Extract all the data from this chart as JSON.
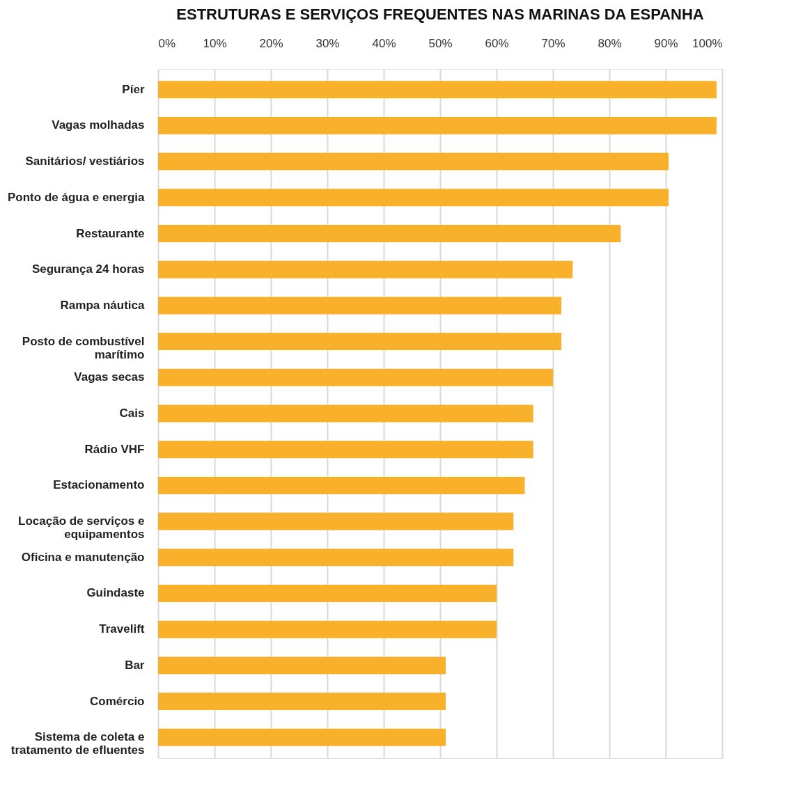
{
  "chart_data": {
    "type": "bar",
    "orientation": "horizontal",
    "title": "ESTRUTURAS E SERVIÇOS FREQUENTES NAS MARINAS DA ESPANHA",
    "categories": [
      "Píer",
      "Vagas molhadas",
      "Sanitários/ vestiários",
      "Ponto de água e energia",
      "Restaurante",
      "Segurança 24 horas",
      "Rampa náutica",
      "Posto de combustível\nmarítimo",
      "Vagas secas",
      "Cais",
      "Rádio VHF",
      "Estacionamento",
      "Locação de serviços e\nequipamentos",
      "Oficina e manutenção",
      "Guindaste",
      "Travelift",
      "Bar",
      "Comércio",
      "Sistema de coleta e\ntratamento de efluentes"
    ],
    "values": [
      99,
      99,
      90.5,
      90.5,
      82,
      73.5,
      71.5,
      71.5,
      70,
      66.5,
      66.5,
      65,
      63,
      63,
      60,
      60,
      51,
      51,
      51
    ],
    "color": "#f9b02a",
    "xlim": [
      0,
      100
    ],
    "xticks": [
      {
        "value": 0,
        "label": "0%"
      },
      {
        "value": 10,
        "label": "10%"
      },
      {
        "value": 20,
        "label": "20%"
      },
      {
        "value": 30,
        "label": "30%"
      },
      {
        "value": 40,
        "label": "40%"
      },
      {
        "value": 50,
        "label": "50%"
      },
      {
        "value": 60,
        "label": "60%"
      },
      {
        "value": 70,
        "label": "70%"
      },
      {
        "value": 80,
        "label": "80%"
      },
      {
        "value": 90,
        "label": "90%"
      },
      {
        "value": 100,
        "label": "100%"
      }
    ],
    "grid": "x"
  }
}
